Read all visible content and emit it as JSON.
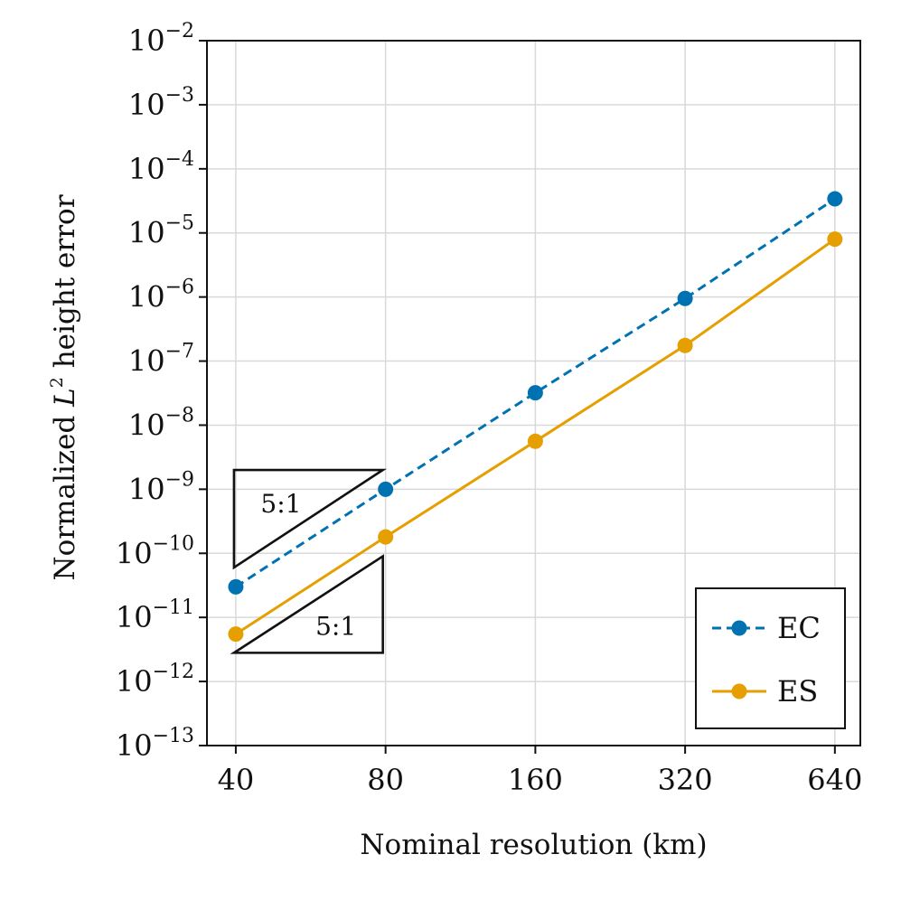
{
  "chart_data": {
    "type": "line",
    "title": "",
    "xlabel": "Nominal resolution (km)",
    "ylabel": {
      "prefix": "Normalized ",
      "italic": "L",
      "superscript": "2",
      "suffix": " height error"
    },
    "x_scale": "log",
    "y_scale": "log",
    "x": [
      40,
      80,
      160,
      320,
      640
    ],
    "x_tick_labels": [
      "40",
      "80",
      "160",
      "320",
      "640"
    ],
    "xlim": [
      35,
      720
    ],
    "ylim": [
      1e-13,
      0.01
    ],
    "y_ticks": [
      {
        "value": 0.01,
        "base": "10",
        "exp": "−2"
      },
      {
        "value": 0.001,
        "base": "10",
        "exp": "−3"
      },
      {
        "value": 0.0001,
        "base": "10",
        "exp": "−4"
      },
      {
        "value": 1e-05,
        "base": "10",
        "exp": "−5"
      },
      {
        "value": 1e-06,
        "base": "10",
        "exp": "−6"
      },
      {
        "value": 1e-07,
        "base": "10",
        "exp": "−7"
      },
      {
        "value": 1e-08,
        "base": "10",
        "exp": "−8"
      },
      {
        "value": 1e-09,
        "base": "10",
        "exp": "−9"
      },
      {
        "value": 1e-10,
        "base": "10",
        "exp": "−10"
      },
      {
        "value": 1e-11,
        "base": "10",
        "exp": "−11"
      },
      {
        "value": 1e-12,
        "base": "10",
        "exp": "−12"
      },
      {
        "value": 1e-13,
        "base": "10",
        "exp": "−13"
      }
    ],
    "grid": true,
    "legend_position": "bottom-right",
    "series": [
      {
        "name": "EC",
        "color": "#0072B2",
        "linestyle": "dashed",
        "marker": "circle",
        "values": [
          3e-11,
          1e-09,
          3.2e-08,
          9.5e-07,
          3.4e-05
        ]
      },
      {
        "name": "ES",
        "color": "#E69F00",
        "linestyle": "solid",
        "marker": "circle",
        "values": [
          5.5e-12,
          1.8e-10,
          5.6e-09,
          1.75e-07,
          8e-06
        ]
      }
    ],
    "annotations": [
      {
        "type": "slope-triangle",
        "label": "5:1",
        "orientation": "upper",
        "x": [
          40,
          80
        ],
        "y": [
          6e-11,
          2e-09
        ]
      },
      {
        "type": "slope-triangle",
        "label": "5:1",
        "orientation": "lower",
        "x": [
          40,
          80
        ],
        "y": [
          2.8e-12,
          9e-11
        ]
      }
    ]
  }
}
